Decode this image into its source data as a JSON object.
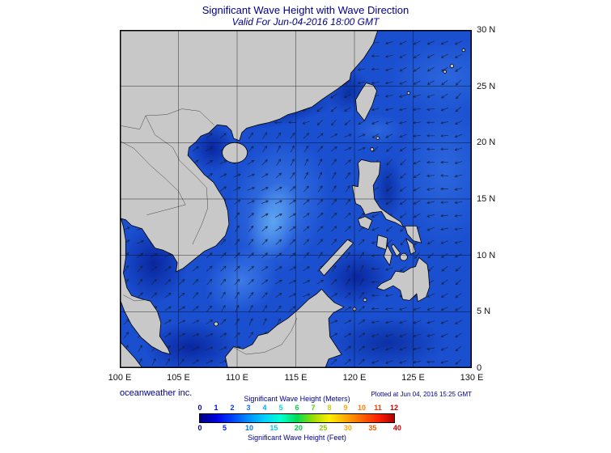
{
  "header": {
    "title": "Significant Wave Height with Wave Direction",
    "subtitle": "Valid For Jun-04-2016 18:00 GMT"
  },
  "footer": {
    "credit": "oceanweather inc.",
    "plotted": "Plotted at Jun 04, 2016 15:25 GMT"
  },
  "axes": {
    "lat": [
      "30 N",
      "25 N",
      "20 N",
      "15 N",
      "10 N",
      "5 N",
      "0"
    ],
    "lon": [
      "100 E",
      "105 E",
      "110 E",
      "115 E",
      "120 E",
      "125 E",
      "130 E"
    ]
  },
  "legend": {
    "meters_label": "Significant Wave Height (Meters)",
    "feet_label": "Significant Wave Height (Feet)",
    "meters_ticks": [
      "0",
      "1",
      "2",
      "3",
      "4",
      "5",
      "6",
      "7",
      "8",
      "9",
      "10",
      "11",
      "12"
    ],
    "meters_tick_colors": [
      "#0000a0",
      "#0000ff",
      "#0033ff",
      "#0077ff",
      "#00aaff",
      "#00dddd",
      "#00cc44",
      "#44cc00",
      "#cccc00",
      "#ffa500",
      "#ff7700",
      "#ff3300",
      "#cc0000"
    ],
    "feet_ticks": [
      "0",
      "5",
      "10",
      "15",
      "20",
      "25",
      "30",
      "35",
      "40"
    ],
    "feet_tick_colors": [
      "#0000a0",
      "#0022ee",
      "#0077ff",
      "#00ccee",
      "#00cc44",
      "#88cc00",
      "#ffa500",
      "#ff5500",
      "#cc0000"
    ],
    "colorbar_gradient": [
      "#000080",
      "#0000e0",
      "#0040ff",
      "#0090ff",
      "#00d0ff",
      "#00ffd0",
      "#00dd55",
      "#99dd00",
      "#ffee00",
      "#ffaa00",
      "#ff6600",
      "#ff2200",
      "#b00000"
    ]
  },
  "map": {
    "sea_base_color": "#1a4fd0",
    "land_color": "#c8c8c8",
    "lon_min_deg": 100,
    "lon_max_deg": 130,
    "lat_min_deg": 0,
    "lat_max_deg": 30
  }
}
